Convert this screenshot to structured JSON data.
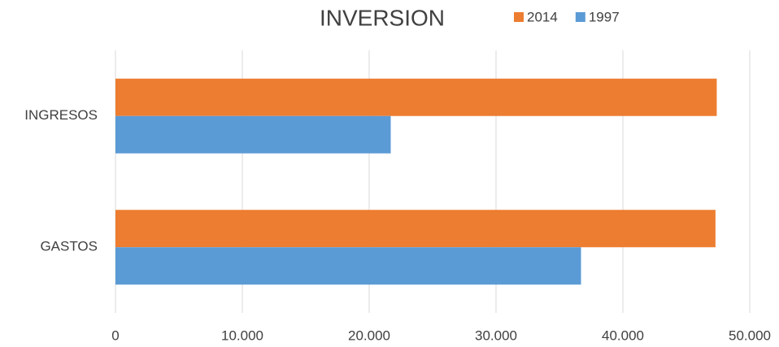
{
  "chart_data": {
    "type": "hbar",
    "title": "INVERSION",
    "categories": [
      "INGRESOS",
      "GASTOS"
    ],
    "series": [
      {
        "name": "2014",
        "color": "#ed7d31",
        "values": [
          47400,
          47300
        ]
      },
      {
        "name": "1997",
        "color": "#5b9bd5",
        "values": [
          21700,
          36700
        ]
      }
    ],
    "xlim": [
      0,
      50000
    ],
    "xticks": [
      0,
      {
        "value": 10000,
        "label": "10.000"
      },
      {
        "value": 20000,
        "label": "20.000"
      },
      {
        "value": 30000,
        "label": "30.000"
      },
      {
        "value": 40000,
        "label": "40.000"
      },
      {
        "value": 50000,
        "label": "50.000"
      }
    ],
    "grid": true,
    "legend": "top"
  }
}
